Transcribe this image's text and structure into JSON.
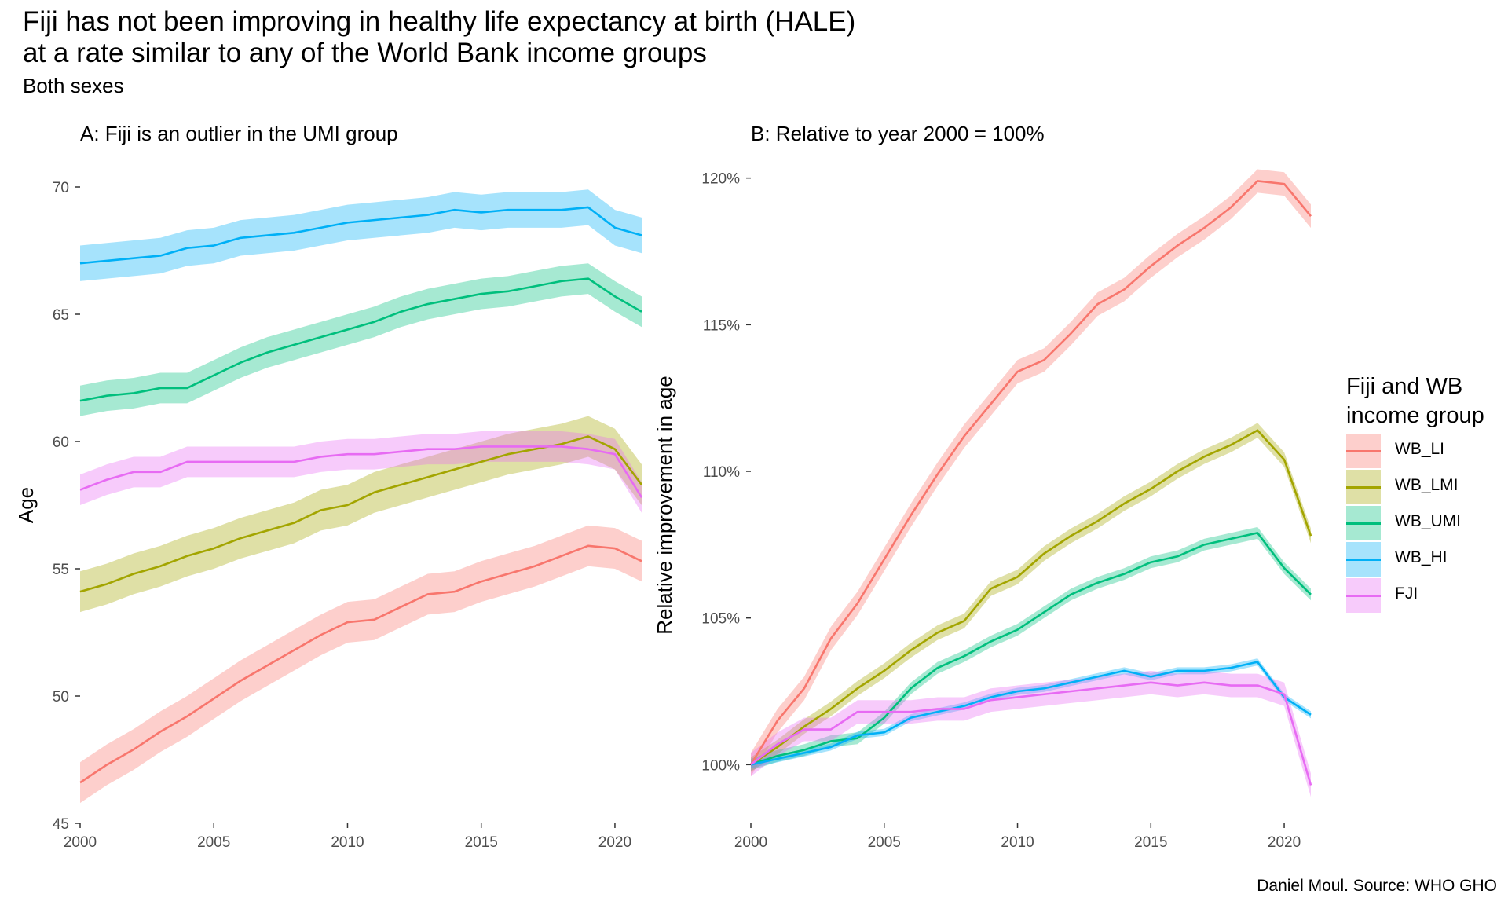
{
  "title_line1": "Fiji has not been improving in healthy life expectancy at birth (HALE)",
  "title_line2": "at a rate similar to any of the World Bank income groups",
  "subtitle": "Both sexes",
  "caption": "Daniel Moul. Source: WHO GHO",
  "legend": {
    "title_line1": "Fiji and WB",
    "title_line2": "income group"
  },
  "colors": {
    "WB_LI": "#F8766D",
    "WB_LMI": "#A3A500",
    "WB_UMI": "#00BF7D",
    "WB_HI": "#00B0F6",
    "FJI": "#E76BF3"
  },
  "chart_data": [
    {
      "type": "line",
      "title": "A: Fiji is an outlier in the UMI group",
      "xlabel": "",
      "ylabel": "Age",
      "xlim": [
        2000,
        2021
      ],
      "ylim": [
        45,
        70
      ],
      "x_ticks": [
        2000,
        2005,
        2010,
        2015,
        2020
      ],
      "y_ticks": [
        45,
        50,
        55,
        60,
        65,
        70
      ],
      "grid": false,
      "legend_position": "right",
      "x": [
        2000,
        2001,
        2002,
        2003,
        2004,
        2005,
        2006,
        2007,
        2008,
        2009,
        2010,
        2011,
        2012,
        2013,
        2014,
        2015,
        2016,
        2017,
        2018,
        2019,
        2020,
        2021
      ],
      "series": [
        {
          "name": "WB_LI",
          "values": [
            46.6,
            47.3,
            47.9,
            48.6,
            49.2,
            49.9,
            50.6,
            51.2,
            51.8,
            52.4,
            52.9,
            53.0,
            53.5,
            54.0,
            54.1,
            54.5,
            54.8,
            55.1,
            55.5,
            55.9,
            55.8,
            55.3
          ],
          "band": 0.8
        },
        {
          "name": "WB_LMI",
          "values": [
            54.1,
            54.4,
            54.8,
            55.1,
            55.5,
            55.8,
            56.2,
            56.5,
            56.8,
            57.3,
            57.5,
            58.0,
            58.3,
            58.6,
            58.9,
            59.2,
            59.5,
            59.7,
            59.9,
            60.2,
            59.7,
            58.3
          ],
          "band": 0.8
        },
        {
          "name": "WB_UMI",
          "values": [
            61.6,
            61.8,
            61.9,
            62.1,
            62.1,
            62.6,
            63.1,
            63.5,
            63.8,
            64.1,
            64.4,
            64.7,
            65.1,
            65.4,
            65.6,
            65.8,
            65.9,
            66.1,
            66.3,
            66.4,
            65.7,
            65.1
          ],
          "band": 0.6
        },
        {
          "name": "WB_HI",
          "values": [
            67.0,
            67.1,
            67.2,
            67.3,
            67.6,
            67.7,
            68.0,
            68.1,
            68.2,
            68.4,
            68.6,
            68.7,
            68.8,
            68.9,
            69.1,
            69.0,
            69.1,
            69.1,
            69.1,
            69.2,
            68.4,
            68.1
          ],
          "band": 0.7
        },
        {
          "name": "FJI",
          "values": [
            58.1,
            58.5,
            58.8,
            58.8,
            59.2,
            59.2,
            59.2,
            59.2,
            59.2,
            59.4,
            59.5,
            59.5,
            59.6,
            59.7,
            59.7,
            59.8,
            59.8,
            59.8,
            59.8,
            59.7,
            59.5,
            57.8
          ],
          "band": 0.6
        }
      ]
    },
    {
      "type": "line",
      "title": "B: Relative to year 2000 = 100%",
      "xlabel": "",
      "ylabel": "Relative improvement in age",
      "xlim": [
        2000,
        2021
      ],
      "ylim": [
        98,
        120.5
      ],
      "x_ticks": [
        2000,
        2005,
        2010,
        2015,
        2020
      ],
      "y_ticks": [
        100,
        105,
        110,
        115,
        120
      ],
      "y_tick_labels": [
        "100%",
        "105%",
        "110%",
        "115%",
        "120%"
      ],
      "grid": false,
      "legend_position": "right",
      "x": [
        2000,
        2001,
        2002,
        2003,
        2004,
        2005,
        2006,
        2007,
        2008,
        2009,
        2010,
        2011,
        2012,
        2013,
        2014,
        2015,
        2016,
        2017,
        2018,
        2019,
        2020,
        2021
      ],
      "series": [
        {
          "name": "WB_LI",
          "values": [
            100.0,
            101.5,
            102.6,
            104.3,
            105.5,
            107.0,
            108.5,
            109.9,
            111.2,
            112.3,
            113.4,
            113.8,
            114.7,
            115.7,
            116.2,
            117.0,
            117.7,
            118.3,
            119.0,
            119.9,
            119.8,
            118.7
          ],
          "band": 0.4
        },
        {
          "name": "WB_LMI",
          "values": [
            100.0,
            100.6,
            101.3,
            101.9,
            102.6,
            103.2,
            103.9,
            104.5,
            104.9,
            106.0,
            106.4,
            107.2,
            107.8,
            108.3,
            108.9,
            109.4,
            110.0,
            110.5,
            110.9,
            111.4,
            110.4,
            107.8
          ],
          "band": 0.25
        },
        {
          "name": "WB_UMI",
          "values": [
            100.0,
            100.3,
            100.5,
            100.8,
            100.9,
            101.6,
            102.6,
            103.3,
            103.7,
            104.2,
            104.6,
            105.2,
            105.8,
            106.2,
            106.5,
            106.9,
            107.1,
            107.5,
            107.7,
            107.9,
            106.7,
            105.8
          ],
          "band": 0.2
        },
        {
          "name": "WB_HI",
          "values": [
            100.0,
            100.2,
            100.4,
            100.6,
            101.0,
            101.1,
            101.6,
            101.8,
            102.0,
            102.3,
            102.5,
            102.6,
            102.8,
            103.0,
            103.2,
            103.0,
            103.2,
            103.2,
            103.3,
            103.5,
            102.3,
            101.7
          ],
          "band": 0.12
        },
        {
          "name": "FJI",
          "values": [
            100.0,
            100.7,
            101.2,
            101.2,
            101.8,
            101.8,
            101.8,
            101.9,
            101.9,
            102.2,
            102.3,
            102.4,
            102.5,
            102.6,
            102.7,
            102.8,
            102.7,
            102.8,
            102.7,
            102.7,
            102.4,
            99.3
          ],
          "band": 0.4
        }
      ]
    }
  ]
}
